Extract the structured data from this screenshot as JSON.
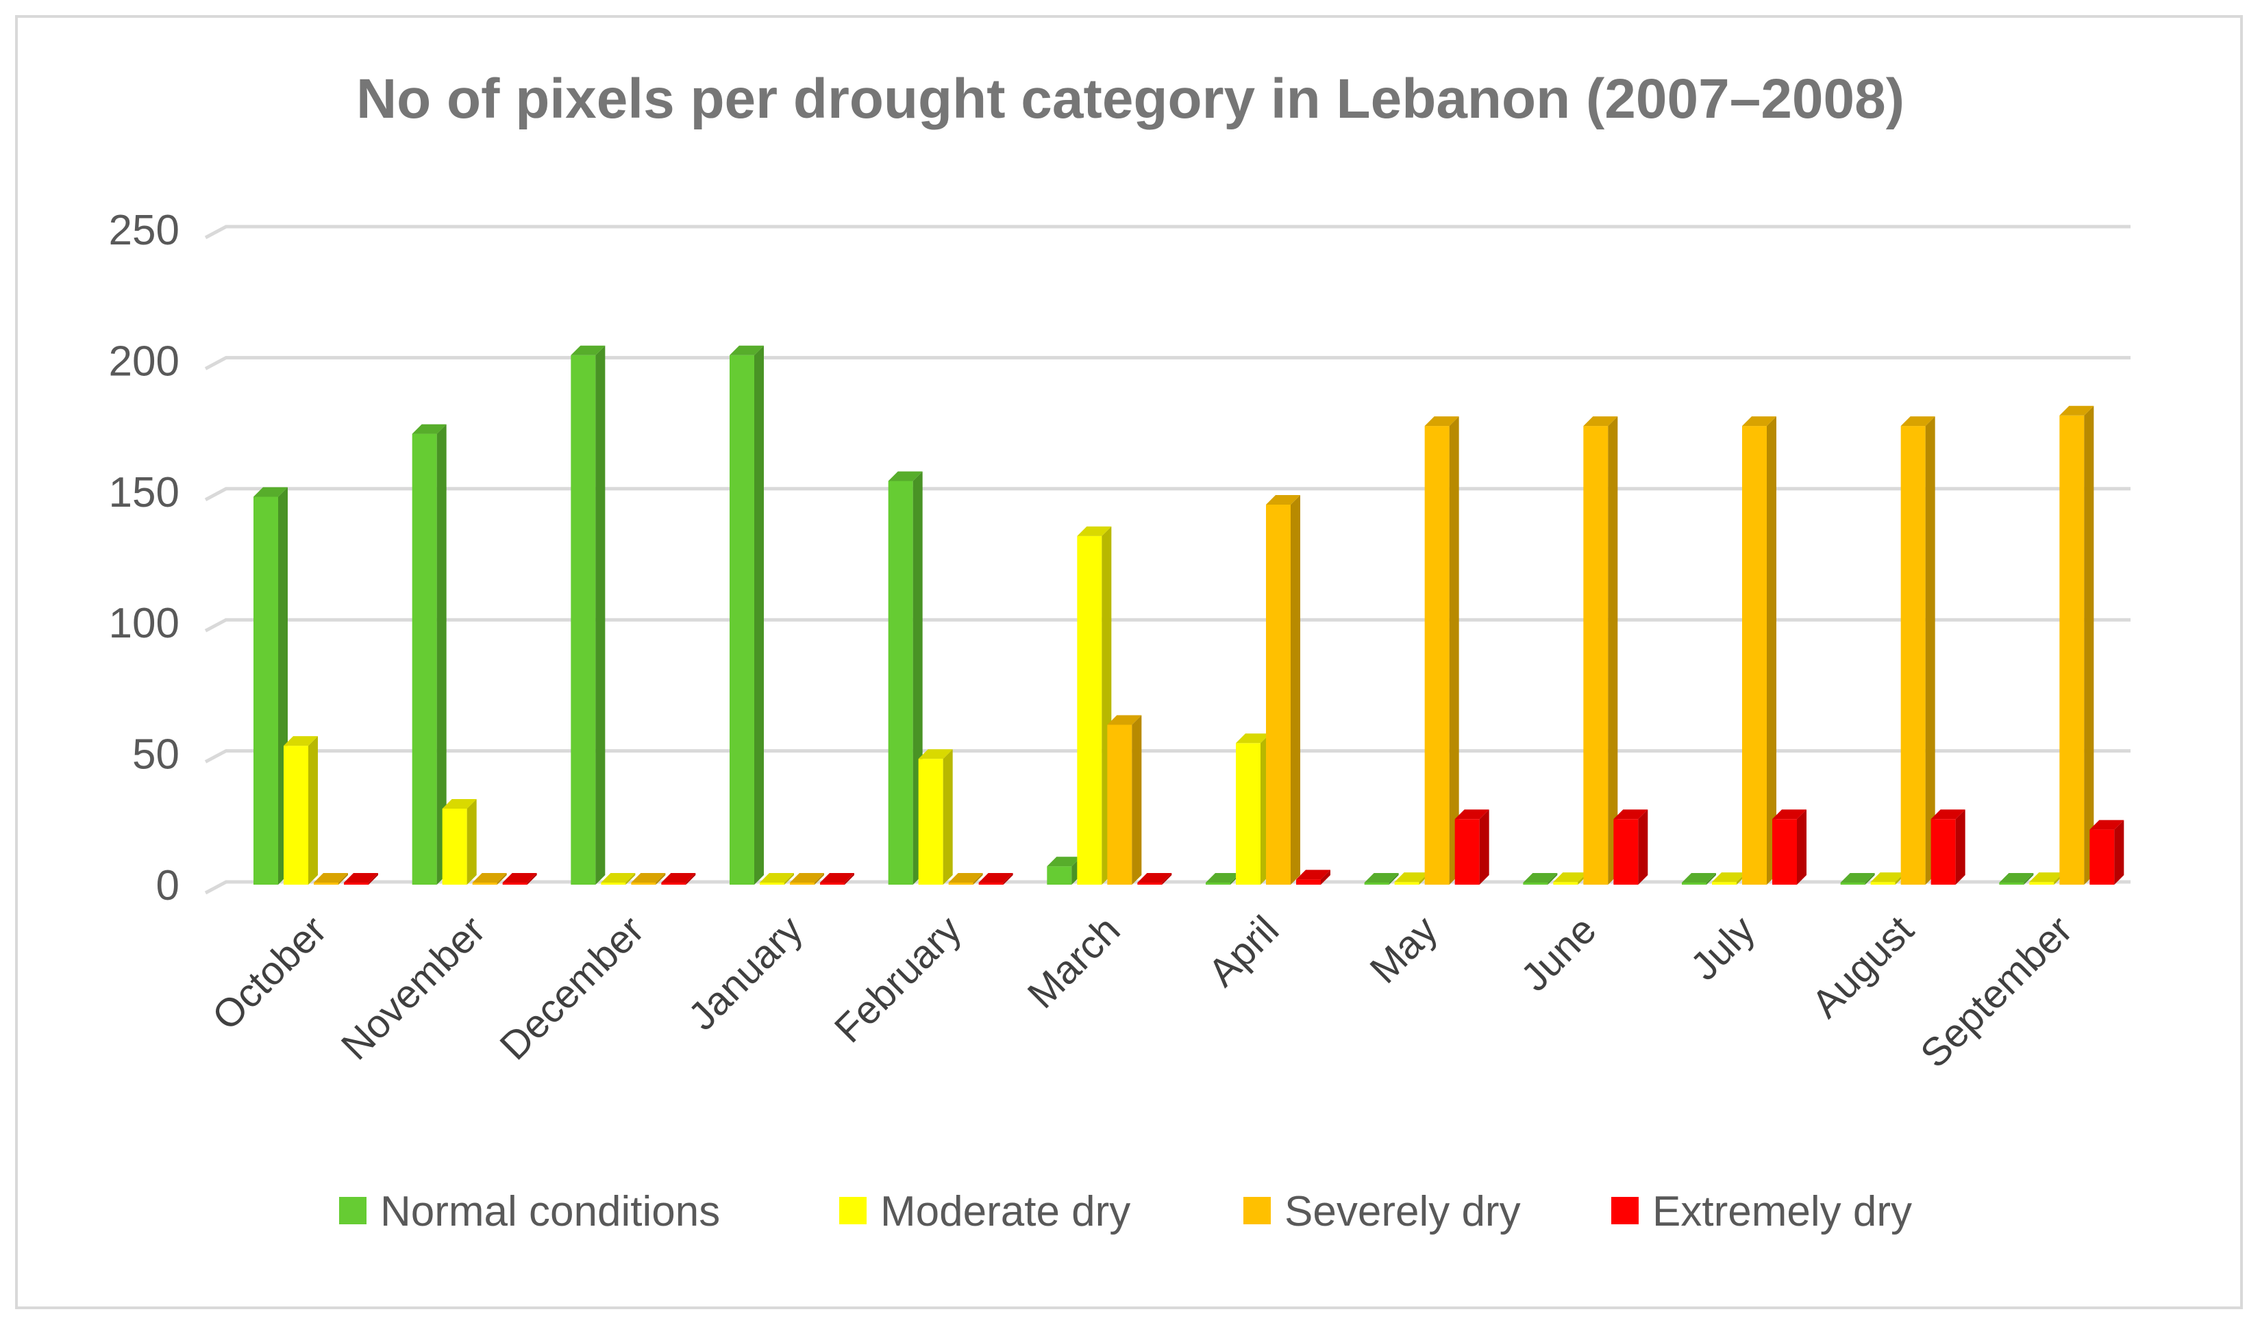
{
  "chart_data": {
    "type": "bar",
    "style": "3d-clustered-column",
    "title": "No of pixels per drought category in Lebanon (2007–2008)",
    "xlabel": "",
    "ylabel": "",
    "ylim": [
      0,
      250
    ],
    "yticks": [
      0,
      50,
      100,
      150,
      200,
      250
    ],
    "grid": true,
    "legend_position": "bottom",
    "categories": [
      "October",
      "November",
      "December",
      "January",
      "February",
      "March",
      "April",
      "May",
      "June",
      "July",
      "August",
      "September"
    ],
    "series": [
      {
        "name": "Normal conditions",
        "color": "#66cc33",
        "values": [
          148,
          172,
          202,
          202,
          154,
          7,
          0,
          0,
          0,
          0,
          0,
          0
        ]
      },
      {
        "name": "Moderate dry",
        "color": "#ffff00",
        "values": [
          53,
          29,
          0,
          0,
          48,
          133,
          54,
          1,
          1,
          1,
          1,
          1
        ]
      },
      {
        "name": "Severely dry",
        "color": "#ffc000",
        "values": [
          0,
          0,
          0,
          0,
          0,
          61,
          145,
          175,
          175,
          175,
          175,
          179
        ]
      },
      {
        "name": "Extremely dry",
        "color": "#ff0000",
        "values": [
          0,
          0,
          0,
          0,
          0,
          0,
          2,
          25,
          25,
          25,
          25,
          21
        ]
      }
    ]
  }
}
